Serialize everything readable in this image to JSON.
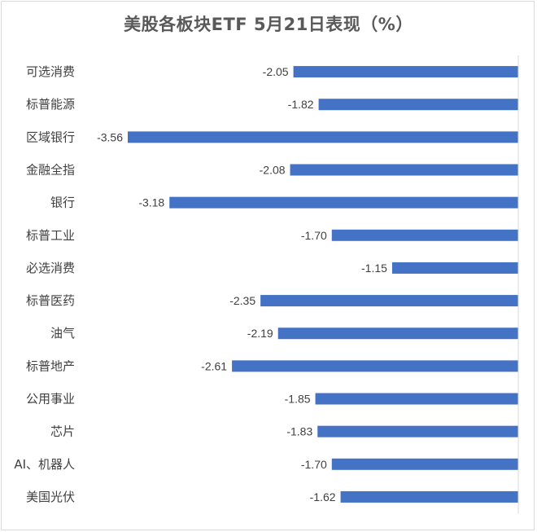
{
  "chart_data": {
    "type": "bar",
    "orientation": "horizontal",
    "title": "美股各板块ETF  5月21日表现（%）",
    "categories": [
      "可选消费",
      "标普能源",
      "区域银行",
      "金融全指",
      "银行",
      "标普工业",
      "必选消费",
      "标普医药",
      "油气",
      "标普地产",
      "公用事业",
      "芯片",
      "AI、机器人",
      "美国光伏"
    ],
    "values": [
      -2.05,
      -1.82,
      -3.56,
      -2.08,
      -3.18,
      -1.7,
      -1.15,
      -2.35,
      -2.19,
      -2.61,
      -1.85,
      -1.83,
      -1.7,
      -1.62
    ],
    "value_labels": [
      "-2.05",
      "-1.82",
      "-3.56",
      "-2.08",
      "-3.18",
      "-1.70",
      "-1.15",
      "-2.35",
      "-2.19",
      "-2.61",
      "-1.85",
      "-1.83",
      "-1.70",
      "-1.62"
    ],
    "xlim": [
      -3.56,
      0
    ],
    "grid": false,
    "bar_color": "#4472c4",
    "axis_color": "#d9d9d9"
  }
}
